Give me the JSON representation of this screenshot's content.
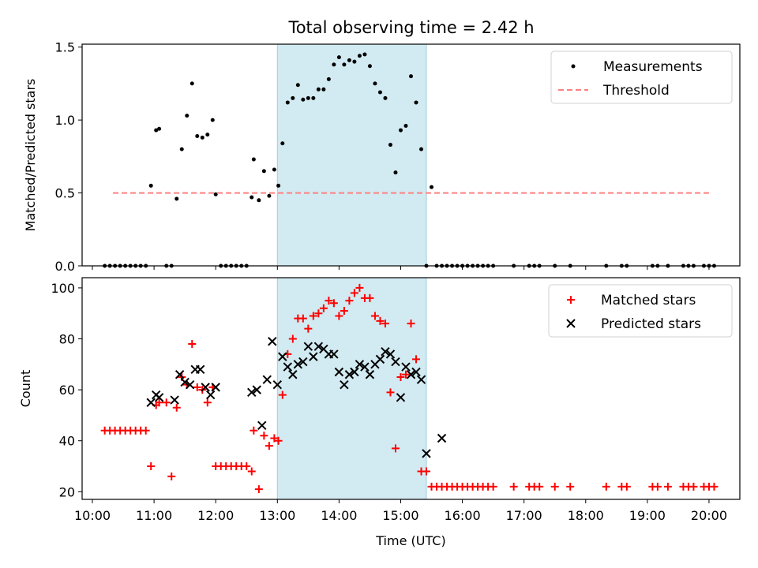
{
  "chart_data": [
    {
      "type": "scatter",
      "title": "Total observing time = 2.42 h",
      "ylabel": "Matched/Predicted stars",
      "xlabel": "",
      "xlim": [
        "9:50",
        "20:30"
      ],
      "ylim": [
        0,
        1.52
      ],
      "yticks": [
        0.0,
        0.5,
        1.0,
        1.5
      ],
      "ytick_labels": [
        "0.0",
        "0.5",
        "1.0",
        "1.5"
      ],
      "shaded_interval": [
        "13:00",
        "15:25"
      ],
      "shade_color": "#add8e6",
      "legend": {
        "placement": "top-right",
        "entries": [
          "Measurements",
          "Threshold"
        ]
      },
      "series": [
        {
          "name": "Measurements",
          "marker": "dot",
          "color": "#000000",
          "x": [
            "10:12",
            "10:17",
            "10:22",
            "10:27",
            "10:32",
            "10:37",
            "10:42",
            "10:47",
            "10:52",
            "10:57",
            "11:02",
            "11:05",
            "11:12",
            "11:17",
            "11:22",
            "11:27",
            "11:32",
            "11:37",
            "11:42",
            "11:47",
            "11:52",
            "11:57",
            "12:00",
            "12:05",
            "12:10",
            "12:15",
            "12:20",
            "12:25",
            "12:30",
            "12:35",
            "12:37",
            "12:42",
            "12:47",
            "12:52",
            "12:57",
            "13:01",
            "13:05",
            "13:10",
            "13:15",
            "13:20",
            "13:25",
            "13:30",
            "13:35",
            "13:40",
            "13:45",
            "13:50",
            "13:55",
            "14:00",
            "14:05",
            "14:10",
            "14:15",
            "14:20",
            "14:25",
            "14:30",
            "14:35",
            "14:40",
            "14:45",
            "14:50",
            "14:55",
            "15:00",
            "15:05",
            "15:10",
            "15:15",
            "15:20",
            "15:25",
            "15:30",
            "15:35",
            "15:40",
            "15:45",
            "15:50",
            "15:55",
            "16:00",
            "16:05",
            "16:10",
            "16:15",
            "16:20",
            "16:25",
            "16:30",
            "16:50",
            "17:05",
            "17:10",
            "17:15",
            "17:30",
            "17:45",
            "18:20",
            "18:35",
            "18:40",
            "19:05",
            "19:10",
            "19:20",
            "19:35",
            "19:40",
            "19:45",
            "19:55",
            "20:00",
            "20:05"
          ],
          "y": [
            0,
            0,
            0,
            0,
            0,
            0,
            0,
            0,
            0,
            0.55,
            0.93,
            0.94,
            0,
            0,
            0.46,
            0.8,
            1.03,
            1.25,
            0.89,
            0.88,
            0.9,
            1.0,
            0.49,
            0,
            0,
            0,
            0,
            0,
            0,
            0.47,
            0.73,
            0.45,
            0.65,
            0.48,
            0.66,
            0.55,
            0.84,
            1.12,
            1.15,
            1.24,
            1.14,
            1.15,
            1.15,
            1.21,
            1.21,
            1.28,
            1.38,
            1.43,
            1.38,
            1.41,
            1.4,
            1.44,
            1.45,
            1.37,
            1.25,
            1.19,
            1.15,
            0.83,
            0.64,
            0.93,
            0.96,
            1.3,
            1.12,
            0.8,
            0,
            0.54,
            0,
            0,
            0,
            0,
            0,
            0,
            0,
            0,
            0,
            0,
            0,
            0,
            0,
            0,
            0,
            0,
            0,
            0,
            0,
            0,
            0,
            0,
            0,
            0,
            0,
            0,
            0,
            0,
            0,
            0
          ]
        },
        {
          "name": "Threshold",
          "style": "dashed",
          "color": "#ff8080",
          "x": [
            "10:20",
            "20:00"
          ],
          "y": [
            0.5,
            0.5
          ]
        }
      ]
    },
    {
      "type": "scatter",
      "title": "",
      "ylabel": "Count",
      "xlabel": "Time (UTC)",
      "xlim": [
        "9:50",
        "20:30"
      ],
      "ylim": [
        17,
        104
      ],
      "yticks": [
        20,
        40,
        60,
        80,
        100
      ],
      "ytick_labels": [
        "20",
        "40",
        "60",
        "80",
        "100"
      ],
      "xticks": [
        "10:00",
        "11:00",
        "12:00",
        "13:00",
        "14:00",
        "15:00",
        "16:00",
        "17:00",
        "18:00",
        "19:00",
        "20:00"
      ],
      "shaded_interval": [
        "13:00",
        "15:25"
      ],
      "shade_color": "#add8e6",
      "legend": {
        "placement": "top-right",
        "entries": [
          "Matched stars",
          "Predicted stars"
        ]
      },
      "series": [
        {
          "name": "Matched stars",
          "marker": "plus",
          "color": "#ff0000",
          "x": [
            "10:12",
            "10:17",
            "10:22",
            "10:27",
            "10:32",
            "10:37",
            "10:42",
            "10:47",
            "10:52",
            "10:57",
            "11:02",
            "11:05",
            "11:12",
            "11:17",
            "11:22",
            "11:27",
            "11:32",
            "11:37",
            "11:42",
            "11:47",
            "11:52",
            "11:57",
            "12:00",
            "12:05",
            "12:10",
            "12:15",
            "12:20",
            "12:25",
            "12:30",
            "12:35",
            "12:37",
            "12:42",
            "12:47",
            "12:52",
            "12:57",
            "13:01",
            "13:05",
            "13:10",
            "13:15",
            "13:20",
            "13:25",
            "13:30",
            "13:35",
            "13:40",
            "13:45",
            "13:50",
            "13:55",
            "14:00",
            "14:05",
            "14:10",
            "14:15",
            "14:20",
            "14:25",
            "14:30",
            "14:35",
            "14:40",
            "14:45",
            "14:50",
            "14:55",
            "15:00",
            "15:05",
            "15:10",
            "15:15",
            "15:20",
            "15:25",
            "15:30",
            "15:35",
            "15:40",
            "15:45",
            "15:50",
            "15:55",
            "16:00",
            "16:05",
            "16:10",
            "16:15",
            "16:20",
            "16:25",
            "16:30",
            "16:50",
            "17:05",
            "17:10",
            "17:15",
            "17:30",
            "17:45",
            "18:20",
            "18:35",
            "18:40",
            "19:05",
            "19:10",
            "19:20",
            "19:35",
            "19:40",
            "19:45",
            "19:55",
            "20:00",
            "20:05"
          ],
          "y": [
            44,
            44,
            44,
            44,
            44,
            44,
            44,
            44,
            44,
            30,
            54,
            55,
            55,
            26,
            53,
            65,
            62,
            78,
            61,
            60,
            55,
            61,
            30,
            30,
            30,
            30,
            30,
            30,
            30,
            28,
            44,
            21,
            42,
            38,
            41,
            40,
            58,
            74,
            80,
            88,
            88,
            84,
            89,
            90,
            92,
            95,
            94,
            89,
            91,
            95,
            98,
            100,
            96,
            96,
            89,
            87,
            86,
            59,
            37,
            65,
            66,
            86,
            72,
            28,
            28,
            22,
            22,
            22,
            22,
            22,
            22,
            22,
            22,
            22,
            22,
            22,
            22,
            22,
            22,
            22,
            22,
            22,
            22,
            22,
            22,
            22,
            22,
            22,
            22,
            22,
            22,
            22,
            22,
            22,
            22,
            22
          ]
        },
        {
          "name": "Predicted stars",
          "marker": "x",
          "color": "#000000",
          "x": [
            "10:57",
            "11:02",
            "11:05",
            "11:20",
            "11:25",
            "11:30",
            "11:35",
            "11:40",
            "11:45",
            "11:50",
            "11:55",
            "12:00",
            "12:35",
            "12:40",
            "12:45",
            "12:50",
            "12:55",
            "13:00",
            "13:05",
            "13:10",
            "13:15",
            "13:20",
            "13:25",
            "13:30",
            "13:35",
            "13:40",
            "13:45",
            "13:50",
            "13:55",
            "14:00",
            "14:05",
            "14:10",
            "14:15",
            "14:20",
            "14:25",
            "14:30",
            "14:35",
            "14:40",
            "14:45",
            "14:50",
            "14:55",
            "15:00",
            "15:05",
            "15:10",
            "15:15",
            "15:20",
            "15:25",
            "15:40"
          ],
          "y": [
            55,
            58,
            57,
            56,
            66,
            63,
            62,
            68,
            68,
            61,
            58,
            61,
            59,
            60,
            46,
            64,
            79,
            62,
            73,
            69,
            66,
            70,
            71,
            77,
            73,
            77,
            76,
            74,
            74,
            67,
            62,
            66,
            67,
            70,
            69,
            66,
            70,
            72,
            75,
            74,
            71,
            57,
            69,
            66,
            67,
            64,
            35,
            41
          ]
        }
      ]
    }
  ]
}
